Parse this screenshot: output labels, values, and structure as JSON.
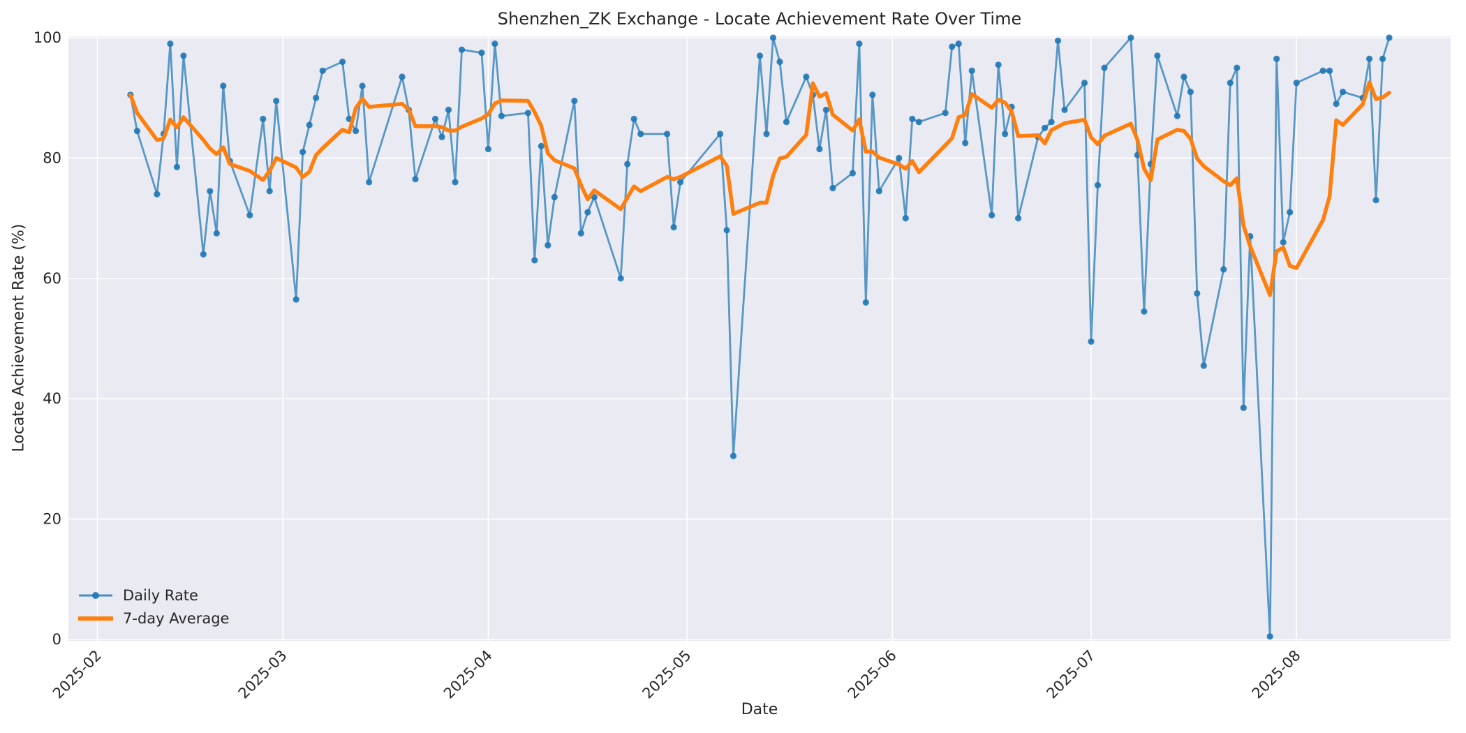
{
  "chart_data": {
    "type": "line",
    "title": "Shenzhen_ZK Exchange - Locate Achievement Rate Over Time",
    "xlabel": "Date",
    "ylabel": "Locate Achievement Rate (%)",
    "ylim": [
      0,
      100
    ],
    "yticks": [
      0,
      20,
      40,
      60,
      80,
      100
    ],
    "xtick_labels": [
      "2025-02",
      "2025-03",
      "2025-04",
      "2025-05",
      "2025-06",
      "2025-07",
      "2025-08"
    ],
    "grid": true,
    "legend_position": "lower left",
    "colors": {
      "daily_line": "#1f77b4",
      "average_line": "#ff7f0e",
      "plot_background": "#eaeaf2",
      "gridline": "#ffffff",
      "text": "#262626"
    },
    "series": [
      {
        "name": "Daily Rate",
        "style": "line+markers",
        "points": [
          [
            "2025-02-06",
            90.5
          ],
          [
            "2025-02-07",
            84.5
          ],
          [
            "2025-02-10",
            74
          ],
          [
            "2025-02-11",
            84
          ],
          [
            "2025-02-12",
            99
          ],
          [
            "2025-02-13",
            78.5
          ],
          [
            "2025-02-14",
            97
          ],
          [
            "2025-02-17",
            64
          ],
          [
            "2025-02-18",
            74.5
          ],
          [
            "2025-02-19",
            67.5
          ],
          [
            "2025-02-20",
            92
          ],
          [
            "2025-02-21",
            79.5
          ],
          [
            "2025-02-24",
            70.5
          ],
          [
            "2025-02-26",
            86.5
          ],
          [
            "2025-02-27",
            74.5
          ],
          [
            "2025-02-28",
            89.5
          ],
          [
            "2025-03-03",
            56.5
          ],
          [
            "2025-03-04",
            81
          ],
          [
            "2025-03-05",
            85.5
          ],
          [
            "2025-03-06",
            90
          ],
          [
            "2025-03-07",
            94.5
          ],
          [
            "2025-03-10",
            96
          ],
          [
            "2025-03-11",
            86.5
          ],
          [
            "2025-03-12",
            84.5
          ],
          [
            "2025-03-13",
            92
          ],
          [
            "2025-03-14",
            76
          ],
          [
            "2025-03-19",
            93.5
          ],
          [
            "2025-03-20",
            88
          ],
          [
            "2025-03-21",
            76.5
          ],
          [
            "2025-03-24",
            86.5
          ],
          [
            "2025-03-25",
            83.5
          ],
          [
            "2025-03-26",
            88
          ],
          [
            "2025-03-27",
            76
          ],
          [
            "2025-03-28",
            98
          ],
          [
            "2025-03-31",
            97.5
          ],
          [
            "2025-04-01",
            81.5
          ],
          [
            "2025-04-02",
            99
          ],
          [
            "2025-04-03",
            87
          ],
          [
            "2025-04-07",
            87.5
          ],
          [
            "2025-04-08",
            63
          ],
          [
            "2025-04-09",
            82
          ],
          [
            "2025-04-10",
            65.5
          ],
          [
            "2025-04-11",
            73.5
          ],
          [
            "2025-04-14",
            89.5
          ],
          [
            "2025-04-15",
            67.5
          ],
          [
            "2025-04-16",
            71
          ],
          [
            "2025-04-17",
            73.5
          ],
          [
            "2025-04-21",
            60
          ],
          [
            "2025-04-22",
            79
          ],
          [
            "2025-04-23",
            86.5
          ],
          [
            "2025-04-24",
            84
          ],
          [
            "2025-04-28",
            84
          ],
          [
            "2025-04-29",
            68.5
          ],
          [
            "2025-04-30",
            76
          ],
          [
            "2025-05-06",
            84
          ],
          [
            "2025-05-07",
            68
          ],
          [
            "2025-05-08",
            30.5
          ],
          [
            "2025-05-12",
            97
          ],
          [
            "2025-05-13",
            84
          ],
          [
            "2025-05-14",
            100
          ],
          [
            "2025-05-15",
            96
          ],
          [
            "2025-05-16",
            86
          ],
          [
            "2025-05-19",
            93.5
          ],
          [
            "2025-05-20",
            90.5
          ],
          [
            "2025-05-21",
            81.5
          ],
          [
            "2025-05-22",
            88
          ],
          [
            "2025-05-23",
            75
          ],
          [
            "2025-05-26",
            77.5
          ],
          [
            "2025-05-27",
            99
          ],
          [
            "2025-05-28",
            56
          ],
          [
            "2025-05-29",
            90.5
          ],
          [
            "2025-05-30",
            74.5
          ],
          [
            "2025-06-02",
            80
          ],
          [
            "2025-06-03",
            70
          ],
          [
            "2025-06-04",
            86.5
          ],
          [
            "2025-06-05",
            86
          ],
          [
            "2025-06-09",
            87.5
          ],
          [
            "2025-06-10",
            98.5
          ],
          [
            "2025-06-11",
            99
          ],
          [
            "2025-06-12",
            82.5
          ],
          [
            "2025-06-13",
            94.5
          ],
          [
            "2025-06-16",
            70.5
          ],
          [
            "2025-06-17",
            95.5
          ],
          [
            "2025-06-18",
            84
          ],
          [
            "2025-06-19",
            88.5
          ],
          [
            "2025-06-20",
            70
          ],
          [
            "2025-06-23",
            83.5
          ],
          [
            "2025-06-24",
            85
          ],
          [
            "2025-06-25",
            86
          ],
          [
            "2025-06-26",
            99.5
          ],
          [
            "2025-06-27",
            88
          ],
          [
            "2025-06-30",
            92.5
          ],
          [
            "2025-07-01",
            49.5
          ],
          [
            "2025-07-02",
            75.5
          ],
          [
            "2025-07-03",
            95
          ],
          [
            "2025-07-07",
            100
          ],
          [
            "2025-07-08",
            80.5
          ],
          [
            "2025-07-09",
            54.5
          ],
          [
            "2025-07-10",
            79
          ],
          [
            "2025-07-11",
            97
          ],
          [
            "2025-07-14",
            87
          ],
          [
            "2025-07-15",
            93.5
          ],
          [
            "2025-07-16",
            91
          ],
          [
            "2025-07-17",
            57.5
          ],
          [
            "2025-07-18",
            45.5
          ],
          [
            "2025-07-21",
            61.5
          ],
          [
            "2025-07-22",
            92.5
          ],
          [
            "2025-07-23",
            95
          ],
          [
            "2025-07-24",
            38.5
          ],
          [
            "2025-07-25",
            67
          ],
          [
            "2025-07-28",
            0.5
          ],
          [
            "2025-07-29",
            96.5
          ],
          [
            "2025-07-30",
            66
          ],
          [
            "2025-07-31",
            71
          ],
          [
            "2025-08-01",
            92.5
          ],
          [
            "2025-08-05",
            94.5
          ],
          [
            "2025-08-06",
            94.5
          ],
          [
            "2025-08-07",
            89
          ],
          [
            "2025-08-08",
            91
          ],
          [
            "2025-08-11",
            90
          ],
          [
            "2025-08-12",
            96.5
          ],
          [
            "2025-08-13",
            73
          ],
          [
            "2025-08-14",
            96.5
          ],
          [
            "2025-08-15",
            100
          ]
        ]
      },
      {
        "name": "7-day Average",
        "style": "line",
        "derived_from": "Daily Rate",
        "method": "rolling_mean",
        "window": 7
      }
    ]
  }
}
